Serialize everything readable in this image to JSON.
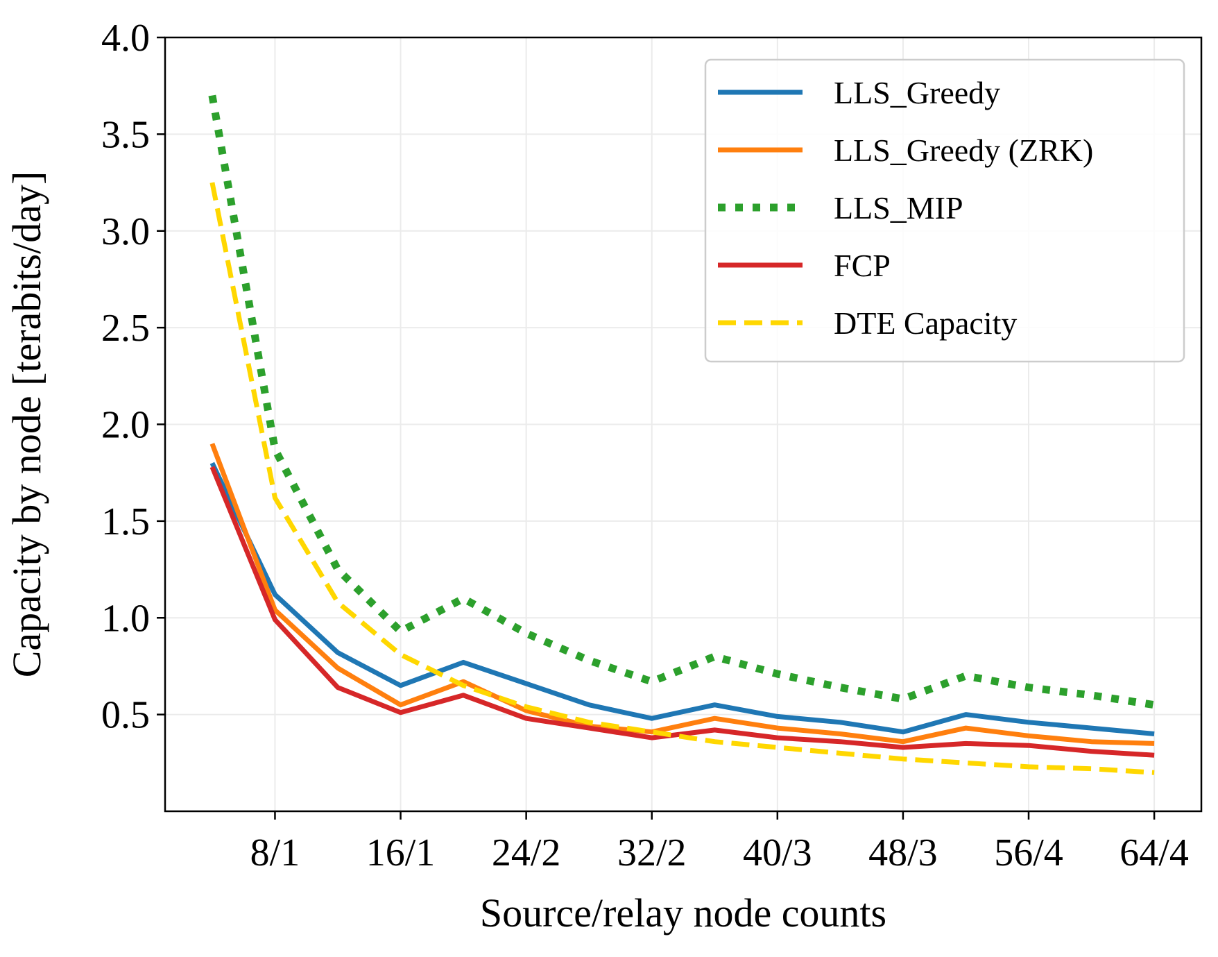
{
  "chart_data": {
    "type": "line",
    "xlabel": "Source/relay node counts",
    "ylabel": "Capacity by node [terabits/day]",
    "x": [
      4,
      8,
      12,
      16,
      20,
      24,
      28,
      32,
      36,
      40,
      44,
      48,
      52,
      56,
      60,
      64
    ],
    "xlim": [
      1,
      67
    ],
    "ylim": [
      0.0,
      4.0
    ],
    "xticks": [
      8,
      16,
      24,
      32,
      40,
      48,
      56,
      64
    ],
    "xtick_labels": [
      "8/1",
      "16/1",
      "24/2",
      "32/2",
      "40/3",
      "48/3",
      "56/4",
      "64/4"
    ],
    "yticks": [
      0.5,
      1.0,
      1.5,
      2.0,
      2.5,
      3.0,
      3.5,
      4.0
    ],
    "ytick_labels": [
      "0.5",
      "1.0",
      "1.5",
      "2.0",
      "2.5",
      "3.0",
      "3.5",
      "4.0"
    ],
    "grid": true,
    "legend_position": "top-right",
    "series": [
      {
        "name": "LLS_Greedy",
        "color": "#1f77b4",
        "style": "solid",
        "values": [
          1.8,
          1.12,
          0.82,
          0.65,
          0.77,
          0.66,
          0.55,
          0.48,
          0.55,
          0.49,
          0.46,
          0.41,
          0.5,
          0.46,
          0.43,
          0.4
        ]
      },
      {
        "name": "LLS_Greedy (ZRK)",
        "color": "#ff7f0e",
        "style": "solid",
        "values": [
          1.9,
          1.04,
          0.74,
          0.55,
          0.67,
          0.52,
          0.44,
          0.41,
          0.48,
          0.43,
          0.4,
          0.36,
          0.43,
          0.39,
          0.36,
          0.35
        ]
      },
      {
        "name": "LLS_MIP",
        "color": "#2ca02c",
        "style": "dotted",
        "values": [
          3.7,
          1.87,
          1.25,
          0.93,
          1.1,
          0.92,
          0.78,
          0.67,
          0.8,
          0.71,
          0.64,
          0.58,
          0.7,
          0.64,
          0.6,
          0.55
        ]
      },
      {
        "name": "FCP",
        "color": "#d62728",
        "style": "solid",
        "values": [
          1.78,
          0.99,
          0.64,
          0.51,
          0.6,
          0.48,
          0.43,
          0.38,
          0.42,
          0.38,
          0.36,
          0.33,
          0.35,
          0.34,
          0.31,
          0.29
        ]
      },
      {
        "name": "DTE Capacity",
        "color": "#ffd700",
        "style": "dashed",
        "values": [
          3.25,
          1.62,
          1.08,
          0.81,
          0.65,
          0.54,
          0.46,
          0.41,
          0.36,
          0.33,
          0.3,
          0.27,
          0.25,
          0.23,
          0.22,
          0.2
        ]
      }
    ]
  }
}
